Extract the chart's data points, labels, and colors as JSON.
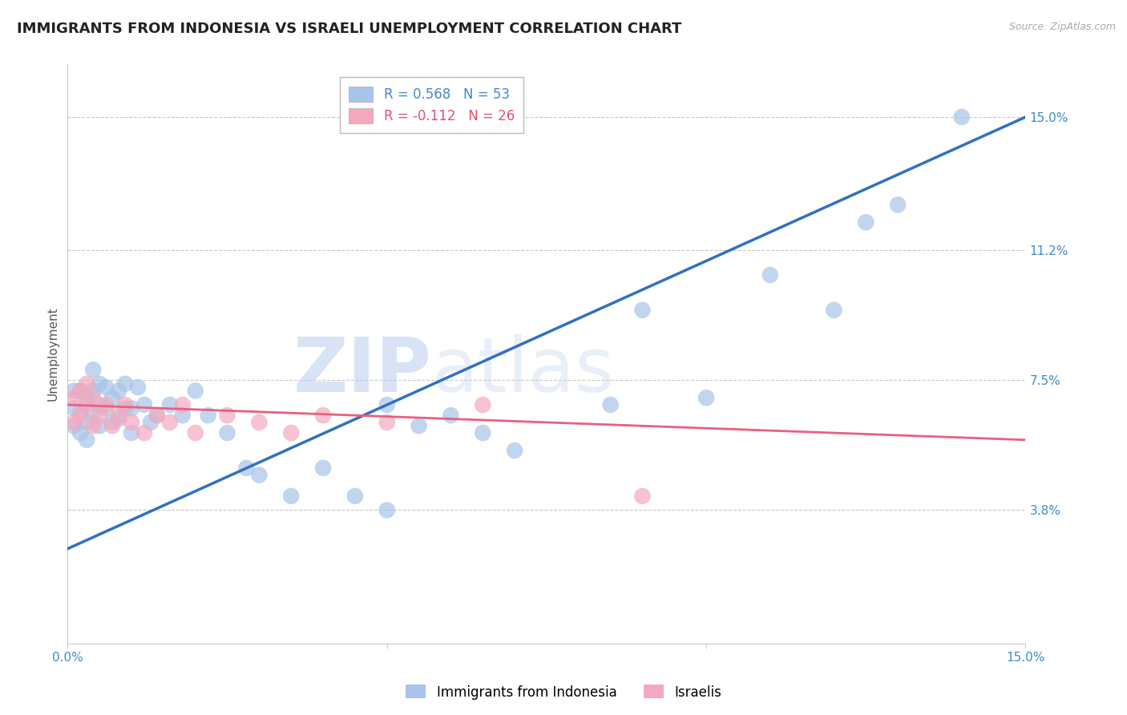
{
  "title": "IMMIGRANTS FROM INDONESIA VS ISRAELI UNEMPLOYMENT CORRELATION CHART",
  "source_text": "Source: ZipAtlas.com",
  "ylabel": "Unemployment",
  "xmin": 0.0,
  "xmax": 0.15,
  "ymin": 0.0,
  "ymax": 0.165,
  "yticks": [
    0.038,
    0.075,
    0.112,
    0.15
  ],
  "ytick_labels": [
    "3.8%",
    "7.5%",
    "11.2%",
    "15.0%"
  ],
  "xticks": [
    0.0,
    0.05,
    0.1,
    0.15
  ],
  "xtick_labels": [
    "0.0%",
    "",
    "",
    "15.0%"
  ],
  "legend_label_blue": "R = 0.568   N = 53",
  "legend_label_pink": "R = -0.112   N = 26",
  "blue_scatter_color": "#a8c4e8",
  "pink_scatter_color": "#f4a8be",
  "blue_line_color": "#3070c0",
  "pink_line_color": "#e86080",
  "grid_color": "#c8c8c8",
  "watermark_zip": "ZIP",
  "watermark_atlas": "atlas",
  "background_color": "#ffffff",
  "title_fontsize": 13,
  "ylabel_fontsize": 11,
  "tick_fontsize": 11,
  "legend_fontsize": 12,
  "blue_line_x0": 0.0,
  "blue_line_y0": 0.027,
  "blue_line_x1": 0.15,
  "blue_line_y1": 0.15,
  "pink_line_x0": 0.0,
  "pink_line_y0": 0.068,
  "pink_line_x1": 0.15,
  "pink_line_y1": 0.058,
  "blue_x": [
    0.001,
    0.001,
    0.001,
    0.002,
    0.002,
    0.002,
    0.003,
    0.003,
    0.003,
    0.004,
    0.004,
    0.004,
    0.005,
    0.005,
    0.005,
    0.006,
    0.006,
    0.007,
    0.007,
    0.008,
    0.008,
    0.009,
    0.009,
    0.01,
    0.01,
    0.011,
    0.012,
    0.013,
    0.014,
    0.016,
    0.018,
    0.02,
    0.022,
    0.025,
    0.028,
    0.03,
    0.035,
    0.04,
    0.045,
    0.05,
    0.05,
    0.055,
    0.06,
    0.065,
    0.07,
    0.085,
    0.09,
    0.1,
    0.11,
    0.12,
    0.125,
    0.13,
    0.14
  ],
  "blue_y": [
    0.062,
    0.067,
    0.072,
    0.06,
    0.066,
    0.072,
    0.058,
    0.063,
    0.07,
    0.066,
    0.072,
    0.078,
    0.062,
    0.068,
    0.074,
    0.067,
    0.073,
    0.063,
    0.07,
    0.064,
    0.072,
    0.067,
    0.074,
    0.06,
    0.067,
    0.073,
    0.068,
    0.063,
    0.065,
    0.068,
    0.065,
    0.072,
    0.065,
    0.06,
    0.05,
    0.048,
    0.042,
    0.05,
    0.042,
    0.038,
    0.068,
    0.062,
    0.065,
    0.06,
    0.055,
    0.068,
    0.095,
    0.07,
    0.105,
    0.095,
    0.12,
    0.125,
    0.15
  ],
  "pink_x": [
    0.001,
    0.001,
    0.002,
    0.002,
    0.003,
    0.003,
    0.004,
    0.004,
    0.005,
    0.006,
    0.007,
    0.008,
    0.009,
    0.01,
    0.012,
    0.014,
    0.016,
    0.018,
    0.02,
    0.025,
    0.03,
    0.035,
    0.04,
    0.05,
    0.065,
    0.09
  ],
  "pink_y": [
    0.063,
    0.07,
    0.065,
    0.072,
    0.068,
    0.074,
    0.062,
    0.07,
    0.065,
    0.068,
    0.062,
    0.065,
    0.068,
    0.063,
    0.06,
    0.065,
    0.063,
    0.068,
    0.06,
    0.065,
    0.063,
    0.06,
    0.065,
    0.063,
    0.068,
    0.042
  ]
}
